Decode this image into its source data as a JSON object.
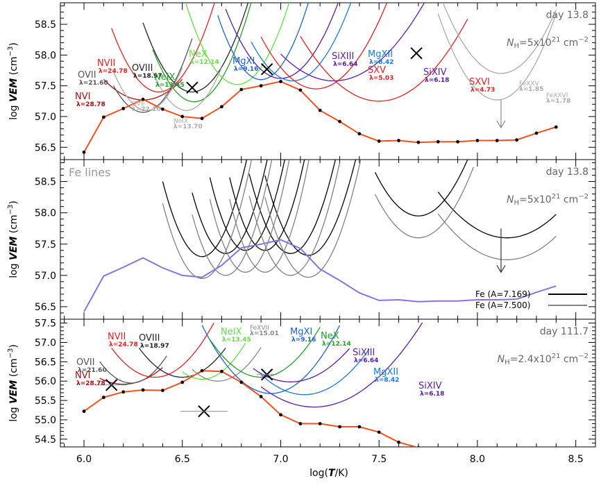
{
  "chart_data": [
    {
      "panel": "top",
      "type": "line",
      "day_label": "day 13.8",
      "nh": {
        "prefix": "N",
        "sub": "H",
        "value": "=5x10",
        "exp": "21",
        "unit": " cm",
        "unit_exp": "−2"
      },
      "ylim": [
        56.3,
        58.85
      ],
      "yticks": [
        "56.5",
        "57.0",
        "57.5",
        "58.0",
        "58.5"
      ],
      "ylabel": {
        "pre": "log ",
        "var": "VEM",
        "unit": " (cm",
        "unit_exp": "−3",
        "close": ")"
      },
      "vem": {
        "color": "#f0501e",
        "x": [
          6.0,
          6.1,
          6.2,
          6.3,
          6.4,
          6.5,
          6.6,
          6.7,
          6.8,
          6.9,
          7.0,
          7.1,
          7.2,
          7.3,
          7.4,
          7.5,
          7.6,
          7.7,
          7.8,
          7.9,
          8.0,
          8.1,
          8.2,
          8.3,
          8.4
        ],
        "y": [
          56.42,
          56.99,
          57.13,
          57.28,
          57.12,
          57.0,
          56.97,
          57.16,
          57.44,
          57.5,
          57.57,
          57.43,
          57.1,
          56.92,
          56.72,
          56.6,
          56.61,
          56.58,
          56.59,
          56.59,
          56.61,
          56.61,
          56.62,
          56.73,
          56.83
        ]
      },
      "crosses": [
        {
          "x": 6.55,
          "y": 57.47
        },
        {
          "x": 6.93,
          "y": 57.77
        },
        {
          "x": 7.69,
          "y": 58.03
        }
      ],
      "arrow": {
        "x": 8.12,
        "y_from": 57.27,
        "y_to": 56.82,
        "color": "#888888"
      },
      "curves": [
        {
          "name": "NVI",
          "lambda": "λ=28.78",
          "color": "#a01010",
          "min_x": 6.3,
          "min_y": 57.27,
          "k": 0.7,
          "x_range": [
            6.1,
            6.5
          ]
        },
        {
          "name": "OVII",
          "lambda": "λ=21.60",
          "color": "#555555",
          "min_x": 6.3,
          "min_y": 57.07,
          "k": 1.6,
          "x_range": [
            6.15,
            6.55
          ]
        },
        {
          "name": "NVII",
          "lambda": "λ=24.78",
          "color": "#e02020",
          "min_x": 6.38,
          "min_y": 57.4,
          "k": 1.5,
          "x_range": [
            6.14,
            6.7
          ]
        },
        {
          "name": "OVIII",
          "lambda": "λ=18.97",
          "color": "#222222",
          "min_x": 6.55,
          "min_y": 57.4,
          "k": 1.5,
          "x_range": [
            6.3,
            6.9
          ]
        },
        {
          "name": "NeIX",
          "lambda": "λ=13.45",
          "color": "#20a020",
          "min_x": 6.56,
          "min_y": 57.24,
          "k": 1.6,
          "x_range": [
            6.35,
            6.85
          ]
        },
        {
          "name": "NeX",
          "lambda": "λ=12.14",
          "color": "#60e040",
          "min_x": 6.78,
          "min_y": 57.52,
          "k": 1.6,
          "x_range": [
            6.48,
            7.2
          ]
        },
        {
          "name": "MgXI",
          "lambda": "λ=9.16",
          "color": "#2060d0",
          "min_x": 6.9,
          "min_y": 57.6,
          "k": 1.8,
          "x_range": [
            6.68,
            7.25
          ]
        },
        {
          "name": "SiXIII",
          "lambda": "λ=6.64",
          "color": "#5a1aa0",
          "min_x": 7.0,
          "min_y": 57.62,
          "k": 1.2,
          "x_range": [
            6.72,
            7.3
          ]
        },
        {
          "name": "MgXII",
          "lambda": "λ=8.42",
          "color": "#1a78e0",
          "min_x": 7.06,
          "min_y": 57.58,
          "k": 1.2,
          "x_range": [
            6.85,
            7.5
          ]
        },
        {
          "name": "SXV",
          "lambda": "λ=5.03",
          "color": "#e02020",
          "min_x": 7.18,
          "min_y": 57.45,
          "k": 0.9,
          "x_range": [
            6.9,
            7.62
          ]
        },
        {
          "name": "SiXIV",
          "lambda": "λ=6.18",
          "color": "#5a1aa0",
          "min_x": 7.27,
          "min_y": 57.58,
          "k": 0.5,
          "x_range": [
            7.0,
            7.8
          ]
        },
        {
          "name": "SXVI",
          "lambda": "λ=4.73",
          "color": "#e02020",
          "min_x": 7.5,
          "min_y": 57.25,
          "k": 0.55,
          "x_range": [
            7.1,
            7.95
          ]
        },
        {
          "name": "FeXXV",
          "lambda": "λ=1.85",
          "color": "#aaaaaa",
          "min_x": 8.12,
          "min_y": 57.7,
          "k": 1.1,
          "x_range": [
            7.5,
            8.4
          ]
        },
        {
          "name": "FeXXVI",
          "lambda": "λ=1.78",
          "color": "#aaaaaa",
          "min_x": 8.1,
          "min_y": 57.27,
          "k": 1.3,
          "x_range": [
            7.8,
            8.4
          ]
        },
        {
          "name": "OVII",
          "lambda": "λ=22.10",
          "color": "#aaaaaa",
          "min_x": 6.32,
          "min_y": 57.1,
          "k": 1.8,
          "x_range": [
            6.15,
            6.5
          ]
        },
        {
          "name": "NeIX",
          "lambda": "λ=13.70",
          "color": "#aaaaaa",
          "min_x": 6.52,
          "min_y": 57.1,
          "k": 1.8,
          "x_range": [
            6.35,
            6.7
          ]
        }
      ]
    },
    {
      "panel": "middle",
      "type": "line",
      "title": "Fe lines",
      "day_label": "day 13.8",
      "nh": {
        "prefix": "N",
        "sub": "H",
        "value": "=5x10",
        "exp": "21",
        "unit": " cm",
        "unit_exp": "−2"
      },
      "ylim": [
        56.3,
        58.85
      ],
      "yticks": [
        "56.5",
        "57.0",
        "57.5",
        "58.0",
        "58.5"
      ],
      "ylabel": {
        "pre": "log ",
        "var": "VEM",
        "unit": " (cm",
        "unit_exp": "−3",
        "close": ")"
      },
      "vem": {
        "color": "#8a70e0",
        "x": [
          6.0,
          6.1,
          6.2,
          6.3,
          6.4,
          6.5,
          6.6,
          6.7,
          6.8,
          6.9,
          7.0,
          7.1,
          7.2,
          7.3,
          7.4,
          7.5,
          7.6,
          7.7,
          7.8,
          7.9,
          8.0,
          8.1,
          8.2,
          8.3,
          8.4
        ],
        "y": [
          56.42,
          56.99,
          57.13,
          57.28,
          57.12,
          57.0,
          56.97,
          57.16,
          57.44,
          57.5,
          57.57,
          57.43,
          57.1,
          56.92,
          56.72,
          56.6,
          56.61,
          56.58,
          56.59,
          56.59,
          56.61,
          56.61,
          56.62,
          56.73,
          56.83
        ]
      },
      "arrow": {
        "x": 8.12,
        "y_from": 57.75,
        "y_to": 57.05,
        "color": "#333333"
      },
      "legend": [
        {
          "label": "Fe (A=7.169)",
          "color": "#000000"
        },
        {
          "label": "Fe (A=7.500)",
          "color": "#808080"
        }
      ],
      "series_black": [
        {
          "min_x": 6.6,
          "min_y": 57.3,
          "k": 2.5,
          "x_range": [
            6.4,
            6.88
          ]
        },
        {
          "min_x": 6.72,
          "min_y": 57.35,
          "k": 2.8,
          "x_range": [
            6.55,
            6.98
          ]
        },
        {
          "min_x": 6.82,
          "min_y": 57.4,
          "k": 3.0,
          "x_range": [
            6.64,
            7.05
          ]
        },
        {
          "min_x": 6.92,
          "min_y": 57.4,
          "k": 3.0,
          "x_range": [
            6.74,
            7.15
          ]
        },
        {
          "min_x": 7.05,
          "min_y": 57.35,
          "k": 2.4,
          "x_range": [
            6.84,
            7.3
          ]
        },
        {
          "min_x": 7.14,
          "min_y": 57.32,
          "k": 2.2,
          "x_range": [
            6.92,
            7.44
          ]
        },
        {
          "min_x": 7.7,
          "min_y": 57.95,
          "k": 1.2,
          "x_range": [
            7.48,
            7.98
          ]
        },
        {
          "min_x": 8.15,
          "min_y": 57.6,
          "k": 0.5,
          "x_range": [
            7.8,
            8.4
          ]
        }
      ],
      "series_grey": [
        {
          "min_x": 6.6,
          "min_y": 56.95,
          "k": 2.5,
          "x_range": [
            6.4,
            6.88
          ]
        },
        {
          "min_x": 6.72,
          "min_y": 57.0,
          "k": 2.8,
          "x_range": [
            6.55,
            6.98
          ]
        },
        {
          "min_x": 6.82,
          "min_y": 57.05,
          "k": 3.0,
          "x_range": [
            6.64,
            7.05
          ]
        },
        {
          "min_x": 6.92,
          "min_y": 57.05,
          "k": 3.0,
          "x_range": [
            6.74,
            7.15
          ]
        },
        {
          "min_x": 7.05,
          "min_y": 57.0,
          "k": 2.4,
          "x_range": [
            6.84,
            7.3
          ]
        },
        {
          "min_x": 7.14,
          "min_y": 56.97,
          "k": 2.2,
          "x_range": [
            6.92,
            7.44
          ]
        },
        {
          "min_x": 7.7,
          "min_y": 57.6,
          "k": 1.2,
          "x_range": [
            7.48,
            7.98
          ]
        },
        {
          "min_x": 8.15,
          "min_y": 57.25,
          "k": 0.5,
          "x_range": [
            7.8,
            8.4
          ]
        }
      ]
    },
    {
      "panel": "bottom",
      "type": "line",
      "day_label": "day 111.7",
      "nh": {
        "prefix": "N",
        "sub": "H",
        "value": "=2.4x10",
        "exp": "21",
        "unit": " cm",
        "unit_exp": "−2"
      },
      "ylim": [
        54.3,
        57.6
      ],
      "yticks": [
        "54.5",
        "55.0",
        "55.5",
        "56.0",
        "56.5",
        "57.0",
        "57.5"
      ],
      "ylabel": {
        "pre": "log ",
        "var": "VEM",
        "unit": " (cm",
        "unit_exp": "−3",
        "close": ")"
      },
      "vem": {
        "color": "#f0501e",
        "x": [
          6.0,
          6.1,
          6.2,
          6.3,
          6.4,
          6.5,
          6.6,
          6.7,
          6.8,
          6.9,
          7.0,
          7.1,
          7.2,
          7.3,
          7.4,
          7.5,
          7.6,
          7.7
        ],
        "y": [
          55.22,
          55.58,
          55.72,
          55.77,
          55.76,
          55.97,
          56.27,
          56.25,
          55.97,
          55.6,
          55.13,
          54.9,
          54.9,
          54.82,
          54.82,
          54.68,
          54.42,
          54.28
        ]
      },
      "crosses": [
        {
          "x": 6.14,
          "y": 55.9,
          "xerr": 0.08
        },
        {
          "x": 6.61,
          "y": 55.22,
          "xerr": 0.12
        },
        {
          "x": 6.93,
          "y": 56.17,
          "xerr": 0.05
        }
      ],
      "curves": [
        {
          "name": "NVI",
          "lambda": "λ=28.78",
          "color": "#a01010",
          "min_x": 6.2,
          "min_y": 55.92,
          "k": 0.9,
          "x_range": [
            6.08,
            6.4
          ]
        },
        {
          "name": "OVII",
          "lambda": "λ=21.60",
          "color": "#555555",
          "min_x": 6.24,
          "min_y": 55.95,
          "k": 1.8,
          "x_range": [
            6.08,
            6.42
          ]
        },
        {
          "name": "NVII",
          "lambda": "λ=24.78",
          "color": "#e02020",
          "min_x": 6.36,
          "min_y": 56.1,
          "k": 1.3,
          "x_range": [
            6.14,
            6.66
          ]
        },
        {
          "name": "OVIII",
          "lambda": "λ=18.97",
          "color": "#222222",
          "min_x": 6.5,
          "min_y": 56.1,
          "k": 1.3,
          "x_range": [
            6.28,
            6.72
          ]
        },
        {
          "name": "NeIX",
          "lambda": "λ=13.45",
          "color": "#60e040",
          "min_x": 6.6,
          "min_y": 56.05,
          "k": 1.6,
          "x_range": [
            6.5,
            6.82
          ]
        },
        {
          "name": "FeXVII",
          "lambda": "λ=15.01",
          "color": "#888888",
          "min_x": 6.68,
          "min_y": 56.0,
          "k": 1.5,
          "x_range": [
            6.55,
            6.9
          ]
        },
        {
          "name": "MgXI",
          "lambda": "λ=9.16",
          "color": "#2060d0",
          "min_x": 6.95,
          "min_y": 55.68,
          "k": 1.2,
          "x_range": [
            6.6,
            7.3
          ]
        },
        {
          "name": "NeX",
          "lambda": "λ=12.14",
          "color": "#20a020",
          "min_x": 6.9,
          "min_y": 56.1,
          "k": 1.2,
          "x_range": [
            6.64,
            7.2
          ]
        },
        {
          "name": "SiXIII",
          "lambda": "λ=6.64",
          "color": "#5a1aa0",
          "min_x": 7.05,
          "min_y": 55.98,
          "k": 0.8,
          "x_range": [
            6.86,
            7.35
          ]
        },
        {
          "name": "MgXII",
          "lambda": "λ=8.42",
          "color": "#1a78e0",
          "min_x": 7.12,
          "min_y": 55.65,
          "k": 0.9,
          "x_range": [
            6.9,
            7.45
          ]
        },
        {
          "name": "SiXIV",
          "lambda": "λ=6.18",
          "color": "#5a1aa0",
          "min_x": 7.17,
          "min_y": 55.33,
          "k": 0.6,
          "x_range": [
            6.9,
            7.72
          ]
        }
      ]
    }
  ],
  "xaxis": {
    "label_pre": "log(",
    "label_var": "T",
    "label_post": "/K)",
    "xlim": [
      5.88,
      8.6
    ],
    "ticks": [
      "6.0",
      "6.5",
      "7.0",
      "7.5",
      "8.0",
      "8.5"
    ]
  }
}
